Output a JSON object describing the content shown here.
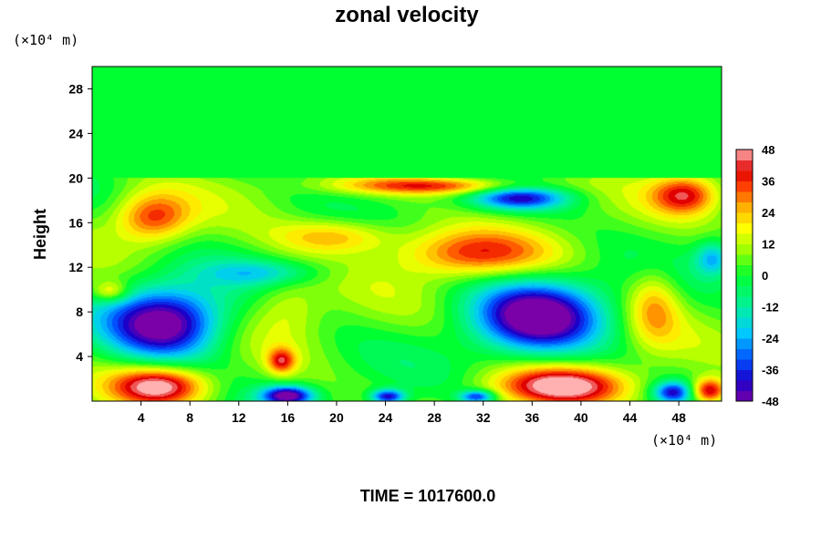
{
  "chart_data": {
    "type": "heatmap",
    "title": "zonal velocity",
    "ylabel": "Height",
    "y_unit_label": "(×10⁴ m)",
    "x_unit_label": "(×10⁴ m)",
    "footer": "TIME = 1017600.0",
    "x_ticks": [
      "4",
      "8",
      "12",
      "16",
      "20",
      "24",
      "28",
      "32",
      "36",
      "40",
      "44",
      "48"
    ],
    "y_ticks": [
      "4",
      "8",
      "12",
      "16",
      "20",
      "24",
      "28"
    ],
    "xlim": [
      0,
      51.5
    ],
    "ylim": [
      0,
      30
    ],
    "colorbar": {
      "labels": [
        "48",
        "36",
        "24",
        "12",
        "0",
        "-12",
        "-24",
        "-36",
        "-48"
      ],
      "range": [
        -48,
        48
      ],
      "stops": [
        {
          "value": -48,
          "color": "#7a00a8"
        },
        {
          "value": -40,
          "color": "#1a00c8"
        },
        {
          "value": -32,
          "color": "#0050ff"
        },
        {
          "value": -22,
          "color": "#00c8ff"
        },
        {
          "value": -12,
          "color": "#00f0a0"
        },
        {
          "value": 0,
          "color": "#00ff30"
        },
        {
          "value": 10,
          "color": "#a0ff00"
        },
        {
          "value": 18,
          "color": "#ffff00"
        },
        {
          "value": 26,
          "color": "#ffb000"
        },
        {
          "value": 34,
          "color": "#ff4000"
        },
        {
          "value": 40,
          "color": "#e00000"
        },
        {
          "value": 48,
          "color": "#ffb0b0"
        }
      ]
    },
    "field": {
      "background": 4,
      "upper_region": {
        "value": 0,
        "above_height": 20
      },
      "features": [
        {
          "x": 6,
          "y": 7,
          "rx": 5,
          "ry": 3.4,
          "v": -52
        },
        {
          "x": 36.5,
          "y": 7.6,
          "rx": 5.5,
          "ry": 3.4,
          "v": -52
        },
        {
          "x": 35,
          "y": 18.2,
          "rx": 4,
          "ry": 1.1,
          "v": -36
        },
        {
          "x": 5,
          "y": 16.5,
          "rx": 3.2,
          "ry": 2.3,
          "v": 36
        },
        {
          "x": 31,
          "y": 13.2,
          "rx": 6.5,
          "ry": 2.2,
          "v": 34
        },
        {
          "x": 20,
          "y": 14.8,
          "rx": 5,
          "ry": 1.6,
          "v": 28
        },
        {
          "x": 28,
          "y": 19.3,
          "rx": 8,
          "ry": 0.8,
          "v": 38
        },
        {
          "x": 48.5,
          "y": 18.5,
          "rx": 2.8,
          "ry": 1.8,
          "v": 38
        },
        {
          "x": 46,
          "y": 8.5,
          "rx": 2.2,
          "ry": 3.5,
          "v": 26
        },
        {
          "x": 5.5,
          "y": 1.4,
          "rx": 4,
          "ry": 1.8,
          "v": 48
        },
        {
          "x": 38.5,
          "y": 1.4,
          "rx": 5.5,
          "ry": 1.8,
          "v": 48
        },
        {
          "x": 50.5,
          "y": 0.9,
          "rx": 1.5,
          "ry": 1.2,
          "v": 48
        },
        {
          "x": 15.5,
          "y": 3.6,
          "rx": 1.2,
          "ry": 1.2,
          "v": 36
        },
        {
          "x": 16,
          "y": 0.5,
          "rx": 2.2,
          "ry": 0.9,
          "v": -48
        },
        {
          "x": 24.2,
          "y": 0.4,
          "rx": 1.5,
          "ry": 0.7,
          "v": -42
        },
        {
          "x": 31.5,
          "y": 0.4,
          "rx": 1.5,
          "ry": 0.6,
          "v": -36
        },
        {
          "x": 47.5,
          "y": 0.8,
          "rx": 1.6,
          "ry": 1.0,
          "v": -36
        },
        {
          "x": 1.5,
          "y": 9.8,
          "rx": 1.6,
          "ry": 1.0,
          "v": 26
        },
        {
          "x": 50.8,
          "y": 12.8,
          "rx": 1.5,
          "ry": 1.6,
          "v": -22
        },
        {
          "x": 16,
          "y": 8.5,
          "rx": 3.0,
          "ry": 3.0,
          "v": 16
        },
        {
          "x": 14,
          "y": 11.5,
          "rx": 5,
          "ry": 1.2,
          "v": -14
        }
      ]
    }
  }
}
